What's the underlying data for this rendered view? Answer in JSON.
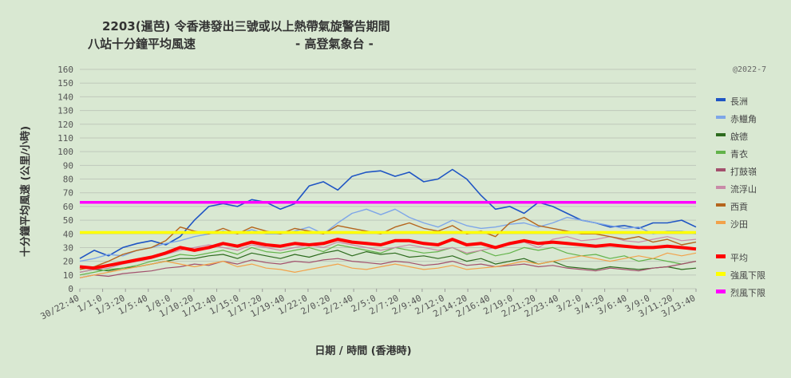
{
  "chart_data": {
    "type": "line",
    "title_line1": "2203(暹芭)  令香港發出三號或以上熱帶氣旋警告期間",
    "title_line2": "八站十分鐘平均風速",
    "title_source": "- 高登氣象台 -",
    "copyright": "@2022-7",
    "xlabel": "日期  /  時間  (香港時)",
    "ylabel": "十分鐘平均風速  (公里/小時)",
    "ylim": [
      0,
      160
    ],
    "yticks": [
      0,
      10,
      20,
      30,
      40,
      50,
      60,
      70,
      80,
      90,
      100,
      110,
      120,
      130,
      140,
      150,
      160
    ],
    "grid": true,
    "legend_position": "right",
    "x_tick_labels": [
      "30/22:40",
      "1/1:0",
      "1/3:20",
      "1/5:40",
      "1/8:0",
      "1/10:20",
      "1/12:40",
      "1/15:0",
      "1/17:20",
      "1/19:40",
      "1/22:0",
      "2/0:20",
      "2/2:40",
      "2/5:0",
      "2/7:20",
      "2/9:40",
      "2/12:0",
      "2/14:20",
      "2/16:40",
      "2/19:0",
      "2/21:20",
      "2/23:40",
      "3/2:0",
      "3/4:20",
      "3/6:40",
      "3/9:0",
      "3/11:20",
      "3/13:40"
    ],
    "series": [
      {
        "name": "長洲",
        "color": "#1f55c4",
        "width": 1.6,
        "kind": "station",
        "values": [
          22,
          28,
          24,
          30,
          33,
          35,
          32,
          38,
          50,
          60,
          62,
          60,
          65,
          63,
          58,
          62,
          75,
          78,
          72,
          82,
          85,
          86,
          82,
          85,
          78,
          80,
          87,
          80,
          68,
          58,
          60,
          55,
          63,
          60,
          55,
          50,
          48,
          45,
          46,
          44,
          48,
          48,
          50,
          45
        ]
      },
      {
        "name": "赤鱲角",
        "color": "#7ea6e8",
        "width": 1.4,
        "kind": "station",
        "values": [
          20,
          22,
          25,
          24,
          28,
          30,
          33,
          35,
          38,
          40,
          42,
          40,
          43,
          40,
          40,
          42,
          45,
          40,
          48,
          55,
          58,
          54,
          58,
          52,
          48,
          45,
          50,
          46,
          44,
          45,
          47,
          48,
          45,
          48,
          52,
          50,
          48,
          46,
          44,
          45,
          40,
          42,
          42,
          40
        ]
      },
      {
        "name": "啟德",
        "color": "#2d6b1e",
        "width": 1.2,
        "kind": "station",
        "values": [
          12,
          14,
          13,
          15,
          16,
          18,
          20,
          22,
          22,
          24,
          25,
          22,
          26,
          24,
          22,
          25,
          23,
          26,
          28,
          24,
          27,
          25,
          26,
          23,
          24,
          22,
          24,
          20,
          22,
          18,
          20,
          22,
          18,
          20,
          16,
          15,
          14,
          16,
          15,
          14,
          15,
          16,
          14,
          15
        ]
      },
      {
        "name": "青衣",
        "color": "#62b34a",
        "width": 1.2,
        "kind": "station",
        "values": [
          10,
          12,
          14,
          15,
          17,
          20,
          22,
          25,
          24,
          26,
          28,
          25,
          30,
          27,
          26,
          28,
          30,
          27,
          32,
          30,
          28,
          26,
          30,
          28,
          26,
          27,
          30,
          25,
          28,
          24,
          26,
          30,
          28,
          30,
          26,
          24,
          25,
          22,
          24,
          20,
          22,
          20,
          18,
          20
        ]
      },
      {
        "name": "打鼓嶺",
        "color": "#a3506d",
        "width": 1.2,
        "kind": "station",
        "values": [
          8,
          10,
          9,
          11,
          12,
          13,
          15,
          16,
          18,
          17,
          20,
          18,
          21,
          19,
          18,
          20,
          19,
          21,
          22,
          20,
          19,
          18,
          20,
          19,
          17,
          18,
          20,
          17,
          18,
          16,
          17,
          18,
          16,
          17,
          15,
          14,
          13,
          15,
          14,
          13,
          15,
          16,
          18,
          20
        ]
      },
      {
        "name": "流浮山",
        "color": "#c98aa8",
        "width": 1.2,
        "kind": "station",
        "values": [
          12,
          14,
          15,
          18,
          20,
          22,
          25,
          28,
          30,
          32,
          30,
          28,
          32,
          30,
          28,
          30,
          32,
          30,
          34,
          32,
          30,
          28,
          30,
          32,
          30,
          28,
          30,
          26,
          28,
          30,
          32,
          34,
          30,
          36,
          38,
          35,
          36,
          38,
          35,
          34,
          36,
          38,
          35,
          36
        ]
      },
      {
        "name": "西貢",
        "color": "#b5651d",
        "width": 1.4,
        "kind": "station",
        "values": [
          14,
          16,
          20,
          25,
          28,
          30,
          35,
          45,
          42,
          40,
          44,
          40,
          45,
          42,
          40,
          44,
          42,
          40,
          46,
          44,
          42,
          40,
          45,
          48,
          44,
          42,
          46,
          40,
          42,
          38,
          48,
          52,
          46,
          44,
          42,
          40,
          40,
          38,
          36,
          38,
          34,
          36,
          32,
          34
        ]
      },
      {
        "name": "沙田",
        "color": "#f2a24a",
        "width": 1.2,
        "kind": "station",
        "values": [
          8,
          10,
          12,
          14,
          16,
          18,
          20,
          18,
          16,
          18,
          20,
          16,
          18,
          15,
          14,
          12,
          14,
          16,
          18,
          15,
          14,
          16,
          18,
          16,
          14,
          15,
          17,
          14,
          15,
          16,
          18,
          20,
          18,
          20,
          22,
          24,
          22,
          20,
          22,
          24,
          22,
          26,
          24,
          26
        ]
      },
      {
        "name": "平均",
        "color": "#ff0000",
        "width": 4,
        "kind": "average",
        "values": [
          16,
          15,
          17,
          19,
          21,
          23,
          26,
          30,
          28,
          30,
          33,
          31,
          34,
          32,
          31,
          33,
          32,
          33,
          36,
          34,
          33,
          32,
          35,
          35,
          33,
          32,
          36,
          32,
          33,
          30,
          33,
          35,
          33,
          34,
          33,
          32,
          31,
          32,
          31,
          30,
          30,
          31,
          30,
          29
        ]
      },
      {
        "name": "強風下限",
        "color": "#ffff00",
        "width": 3.5,
        "kind": "threshold",
        "values": [
          41,
          41
        ]
      },
      {
        "name": "烈風下限",
        "color": "#ff00ff",
        "width": 3.5,
        "kind": "threshold",
        "values": [
          63,
          63
        ]
      }
    ]
  }
}
